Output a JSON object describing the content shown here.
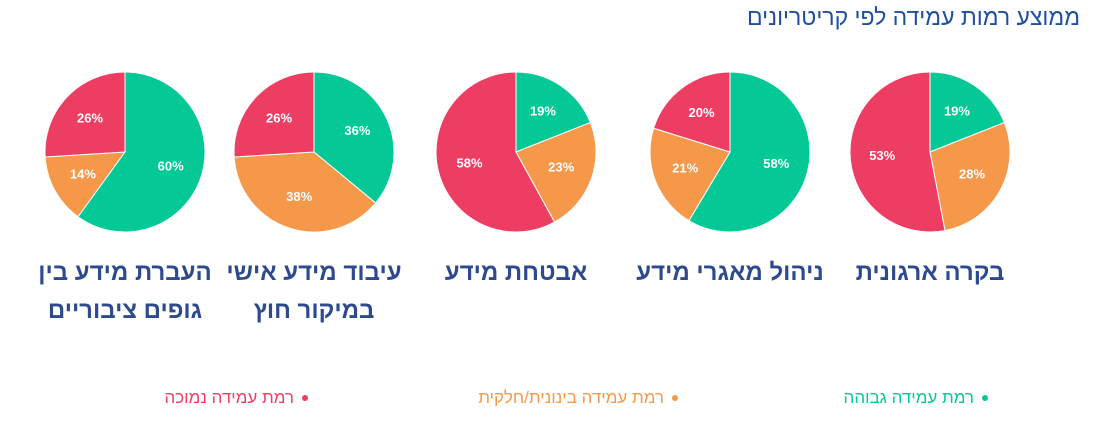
{
  "title": "ממוצע רמות עמידה לפי קריטריונים",
  "legend": {
    "names": [
      "רמת עמידה גבוהה",
      "רמת עמידה בינונית/חלקית",
      "רמת עמידה נמוכה"
    ],
    "colors": [
      "#04c896",
      "#f6984a",
      "#ee3d62"
    ]
  },
  "chart_data": [
    {
      "type": "pie",
      "title": "בקרה ארגונית",
      "values": [
        19,
        28,
        53
      ],
      "value_labels": [
        "19%",
        "28%",
        "53%"
      ]
    },
    {
      "type": "pie",
      "title": "ניהול מאגרי מידע",
      "values": [
        58,
        21,
        20
      ],
      "value_labels": [
        "58%",
        "21%",
        "20%"
      ]
    },
    {
      "type": "pie",
      "title": "אבטחת מידע",
      "values": [
        19,
        23,
        58
      ],
      "value_labels": [
        "19%",
        "23%",
        "58%"
      ]
    },
    {
      "type": "pie",
      "title": "עיבוד מידע אישי במיקור חוץ",
      "values": [
        36,
        38,
        26
      ],
      "value_labels": [
        "36%",
        "38%",
        "26%"
      ]
    },
    {
      "type": "pie",
      "title": "העברת מידע בין גופים ציבוריים",
      "values": [
        60,
        14,
        26
      ],
      "value_labels": [
        "60%",
        "14%",
        "26%"
      ]
    }
  ]
}
